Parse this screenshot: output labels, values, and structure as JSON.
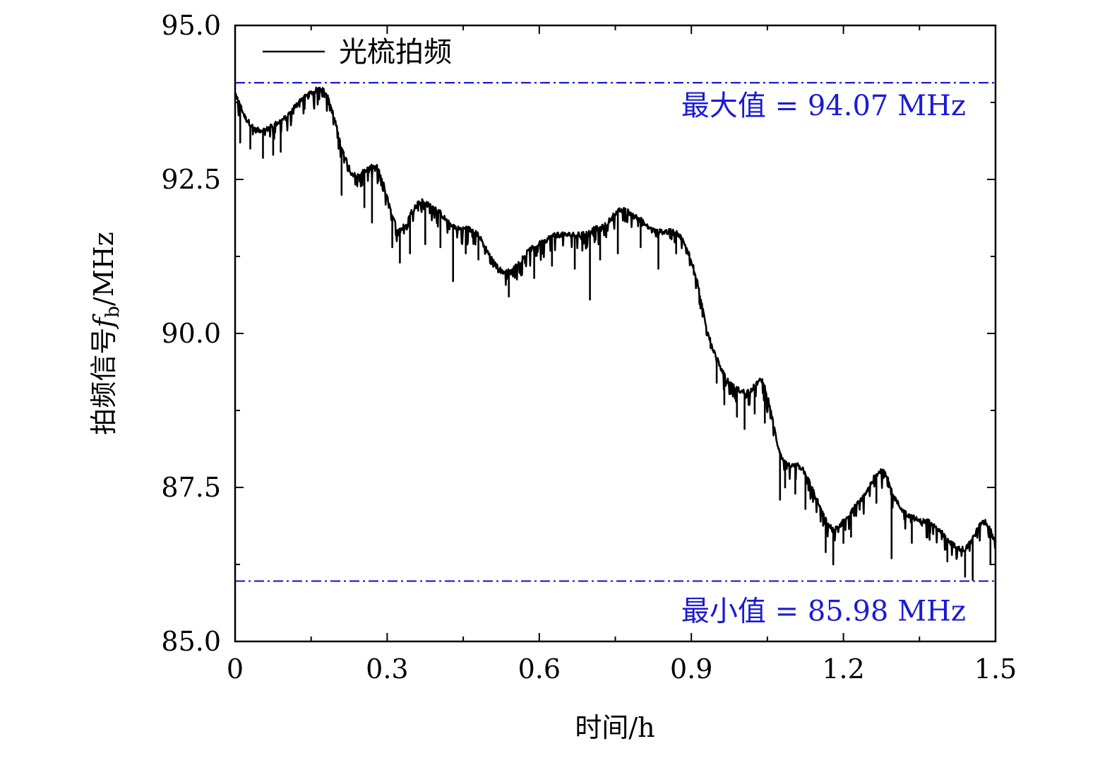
{
  "chart_data": {
    "type": "line",
    "xlabel": "时间/h",
    "ylabel_prefix": "拍频信号",
    "ylabel_symbol": "f",
    "ylabel_subscript": "b",
    "ylabel_unit": "/MHz",
    "xlim": [
      0,
      1.5
    ],
    "ylim": [
      85.0,
      95.0
    ],
    "x_ticks": [
      0,
      0.3,
      0.6,
      0.9,
      1.2,
      1.5
    ],
    "x_tick_labels": [
      "0",
      "0.3",
      "0.6",
      "0.9",
      "1.2",
      "1.5"
    ],
    "y_ticks": [
      85.0,
      87.5,
      90.0,
      92.5,
      95.0
    ],
    "y_tick_labels": [
      "85.0",
      "87.5",
      "90.0",
      "92.5",
      "95.0"
    ],
    "legend_position": "top-left",
    "grid": false,
    "series": [
      {
        "name": "光梳拍频",
        "color": "#000000",
        "points": [
          [
            0.0,
            93.9
          ],
          [
            0.01,
            93.7
          ],
          [
            0.02,
            93.5
          ],
          [
            0.03,
            93.4
          ],
          [
            0.04,
            93.3
          ],
          [
            0.05,
            93.3
          ],
          [
            0.06,
            93.3
          ],
          [
            0.07,
            93.35
          ],
          [
            0.08,
            93.4
          ],
          [
            0.09,
            93.45
          ],
          [
            0.1,
            93.5
          ],
          [
            0.11,
            93.6
          ],
          [
            0.12,
            93.7
          ],
          [
            0.13,
            93.8
          ],
          [
            0.14,
            93.85
          ],
          [
            0.15,
            93.9
          ],
          [
            0.16,
            93.95
          ],
          [
            0.17,
            94.0
          ],
          [
            0.18,
            93.9
          ],
          [
            0.19,
            93.65
          ],
          [
            0.2,
            93.35
          ],
          [
            0.21,
            93.0
          ],
          [
            0.22,
            92.8
          ],
          [
            0.23,
            92.6
          ],
          [
            0.24,
            92.55
          ],
          [
            0.25,
            92.6
          ],
          [
            0.26,
            92.65
          ],
          [
            0.27,
            92.7
          ],
          [
            0.28,
            92.7
          ],
          [
            0.29,
            92.5
          ],
          [
            0.3,
            92.2
          ],
          [
            0.31,
            91.9
          ],
          [
            0.32,
            91.7
          ],
          [
            0.33,
            91.7
          ],
          [
            0.34,
            91.85
          ],
          [
            0.35,
            92.0
          ],
          [
            0.36,
            92.1
          ],
          [
            0.37,
            92.15
          ],
          [
            0.38,
            92.1
          ],
          [
            0.39,
            92.05
          ],
          [
            0.4,
            92.0
          ],
          [
            0.41,
            91.9
          ],
          [
            0.42,
            91.8
          ],
          [
            0.43,
            91.75
          ],
          [
            0.44,
            91.7
          ],
          [
            0.45,
            91.7
          ],
          [
            0.46,
            91.7
          ],
          [
            0.47,
            91.65
          ],
          [
            0.48,
            91.6
          ],
          [
            0.49,
            91.45
          ],
          [
            0.5,
            91.3
          ],
          [
            0.51,
            91.15
          ],
          [
            0.52,
            91.05
          ],
          [
            0.53,
            91.0
          ],
          [
            0.54,
            91.0
          ],
          [
            0.55,
            91.05
          ],
          [
            0.56,
            91.15
          ],
          [
            0.57,
            91.25
          ],
          [
            0.58,
            91.35
          ],
          [
            0.59,
            91.4
          ],
          [
            0.6,
            91.45
          ],
          [
            0.61,
            91.5
          ],
          [
            0.62,
            91.55
          ],
          [
            0.63,
            91.6
          ],
          [
            0.64,
            91.6
          ],
          [
            0.65,
            91.6
          ],
          [
            0.66,
            91.6
          ],
          [
            0.67,
            91.6
          ],
          [
            0.68,
            91.6
          ],
          [
            0.69,
            91.62
          ],
          [
            0.7,
            91.65
          ],
          [
            0.71,
            91.7
          ],
          [
            0.72,
            91.7
          ],
          [
            0.73,
            91.75
          ],
          [
            0.74,
            91.85
          ],
          [
            0.75,
            91.95
          ],
          [
            0.76,
            92.0
          ],
          [
            0.77,
            92.0
          ],
          [
            0.78,
            91.95
          ],
          [
            0.79,
            91.9
          ],
          [
            0.8,
            91.85
          ],
          [
            0.81,
            91.75
          ],
          [
            0.82,
            91.7
          ],
          [
            0.83,
            91.65
          ],
          [
            0.84,
            91.65
          ],
          [
            0.85,
            91.65
          ],
          [
            0.86,
            91.65
          ],
          [
            0.87,
            91.65
          ],
          [
            0.88,
            91.55
          ],
          [
            0.89,
            91.4
          ],
          [
            0.9,
            91.2
          ],
          [
            0.91,
            90.9
          ],
          [
            0.92,
            90.5
          ],
          [
            0.93,
            90.1
          ],
          [
            0.94,
            89.8
          ],
          [
            0.95,
            89.6
          ],
          [
            0.96,
            89.4
          ],
          [
            0.97,
            89.25
          ],
          [
            0.98,
            89.15
          ],
          [
            0.99,
            89.1
          ],
          [
            1.0,
            89.05
          ],
          [
            1.01,
            89.05
          ],
          [
            1.02,
            89.1
          ],
          [
            1.03,
            89.2
          ],
          [
            1.04,
            89.25
          ],
          [
            1.05,
            89.0
          ],
          [
            1.06,
            88.6
          ],
          [
            1.07,
            88.2
          ],
          [
            1.08,
            87.95
          ],
          [
            1.09,
            87.85
          ],
          [
            1.1,
            87.85
          ],
          [
            1.11,
            87.85
          ],
          [
            1.12,
            87.8
          ],
          [
            1.13,
            87.65
          ],
          [
            1.14,
            87.45
          ],
          [
            1.15,
            87.25
          ],
          [
            1.16,
            87.05
          ],
          [
            1.17,
            86.9
          ],
          [
            1.18,
            86.8
          ],
          [
            1.19,
            86.85
          ],
          [
            1.2,
            86.95
          ],
          [
            1.21,
            87.05
          ],
          [
            1.22,
            87.15
          ],
          [
            1.23,
            87.25
          ],
          [
            1.24,
            87.35
          ],
          [
            1.25,
            87.5
          ],
          [
            1.26,
            87.65
          ],
          [
            1.27,
            87.75
          ],
          [
            1.28,
            87.8
          ],
          [
            1.29,
            87.6
          ],
          [
            1.3,
            87.35
          ],
          [
            1.31,
            87.2
          ],
          [
            1.32,
            87.1
          ],
          [
            1.33,
            87.05
          ],
          [
            1.34,
            87.0
          ],
          [
            1.35,
            86.95
          ],
          [
            1.36,
            86.95
          ],
          [
            1.37,
            86.95
          ],
          [
            1.38,
            86.9
          ],
          [
            1.39,
            86.8
          ],
          [
            1.4,
            86.7
          ],
          [
            1.41,
            86.6
          ],
          [
            1.42,
            86.55
          ],
          [
            1.43,
            86.5
          ],
          [
            1.44,
            86.5
          ],
          [
            1.45,
            86.6
          ],
          [
            1.46,
            86.75
          ],
          [
            1.47,
            86.9
          ],
          [
            1.48,
            86.95
          ],
          [
            1.49,
            86.8
          ],
          [
            1.5,
            86.6
          ]
        ],
        "dips": [
          [
            0.01,
            93.1
          ],
          [
            0.03,
            93.0
          ],
          [
            0.055,
            92.85
          ],
          [
            0.075,
            92.9
          ],
          [
            0.09,
            92.95
          ],
          [
            0.21,
            92.25
          ],
          [
            0.255,
            92.05
          ],
          [
            0.27,
            91.8
          ],
          [
            0.31,
            91.4
          ],
          [
            0.325,
            91.15
          ],
          [
            0.345,
            91.3
          ],
          [
            0.375,
            91.45
          ],
          [
            0.405,
            91.4
          ],
          [
            0.43,
            90.85
          ],
          [
            0.455,
            91.3
          ],
          [
            0.48,
            91.2
          ],
          [
            0.54,
            90.6
          ],
          [
            0.59,
            90.9
          ],
          [
            0.625,
            91.1
          ],
          [
            0.67,
            91.05
          ],
          [
            0.7,
            90.55
          ],
          [
            0.72,
            91.2
          ],
          [
            0.755,
            91.3
          ],
          [
            0.8,
            91.4
          ],
          [
            0.835,
            91.05
          ],
          [
            0.87,
            91.3
          ],
          [
            0.95,
            89.2
          ],
          [
            0.965,
            88.85
          ],
          [
            0.99,
            88.65
          ],
          [
            1.005,
            88.45
          ],
          [
            1.025,
            88.7
          ],
          [
            1.045,
            88.55
          ],
          [
            1.075,
            87.3
          ],
          [
            1.085,
            87.5
          ],
          [
            1.105,
            87.4
          ],
          [
            1.125,
            87.15
          ],
          [
            1.165,
            86.45
          ],
          [
            1.18,
            86.25
          ],
          [
            1.2,
            86.6
          ],
          [
            1.215,
            86.7
          ],
          [
            1.265,
            87.25
          ],
          [
            1.295,
            86.35
          ],
          [
            1.335,
            86.6
          ],
          [
            1.37,
            86.65
          ],
          [
            1.405,
            86.3
          ],
          [
            1.44,
            86.05
          ],
          [
            1.455,
            86.0
          ],
          [
            1.49,
            86.25
          ]
        ]
      }
    ],
    "reference_lines": [
      {
        "value": 94.07,
        "label": "最大值 = 94.07 MHz",
        "color": "#1a1ad8",
        "style": "dash-dot"
      },
      {
        "value": 85.98,
        "label": "最小值 = 85.98 MHz",
        "color": "#1a1ad8",
        "style": "dash-dot"
      }
    ]
  }
}
